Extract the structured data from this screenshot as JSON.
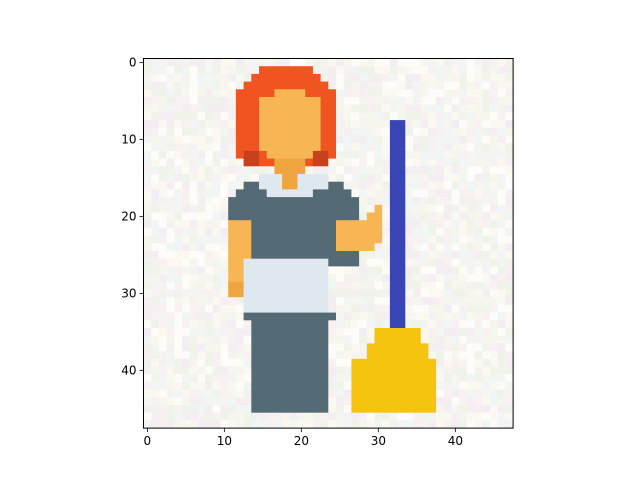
{
  "image": {
    "subject": "pixel-art maid holding a broom",
    "grid_size": [
      48,
      48
    ]
  },
  "axes": {
    "x_ticks": [
      0,
      10,
      20,
      30,
      40
    ],
    "y_ticks": [
      0,
      10,
      20,
      30,
      40
    ],
    "x_range": [
      -0.5,
      47.5
    ],
    "y_range": [
      47.5,
      -0.5
    ],
    "origin": "upper-left"
  },
  "palette": {
    "background_noise": [
      "#f6f6ee",
      "#fbf8f1",
      "#f1f5f4",
      "#f8f1f1",
      "#eff3ea",
      "#fdfcf8",
      "#f4eef3"
    ],
    "hair": "#f05420",
    "hair_dark": "#c8401c",
    "skin": "#f7b653",
    "skin_shade": "#f0a640",
    "uniform": "#546a74",
    "apron": "#dfe8ef",
    "broom_handle": "#3a45b5",
    "broom_head": "#f5c40f",
    "frame": "#000000"
  }
}
